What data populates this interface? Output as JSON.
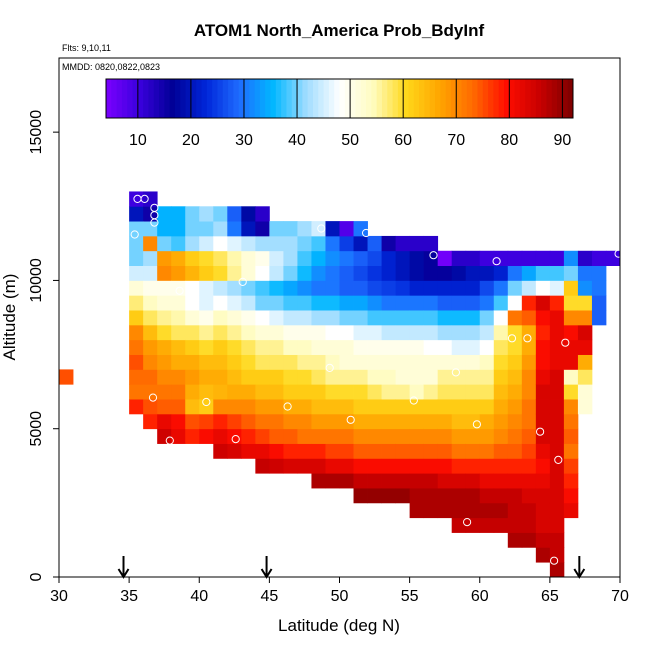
{
  "chart_data": {
    "type": "heatmap",
    "title": "ATOM1 North_America Prob_BdyInf",
    "subtitle_lines": [
      "Flts: 9,10,11",
      "MMDD: 0820,0822,0823"
    ],
    "xlabel": "Latitude (deg N)",
    "ylabel": "Altitude (m)",
    "xlim": [
      30,
      70
    ],
    "ylim": [
      0,
      17500
    ],
    "x_ticks": [
      30,
      35,
      40,
      45,
      50,
      55,
      60,
      65,
      70
    ],
    "y_ticks": [
      0,
      5000,
      10000,
      15000
    ],
    "grid": false,
    "colorbar": {
      "range": [
        4,
        92
      ],
      "ticks": [
        10,
        20,
        30,
        40,
        50,
        60,
        70,
        80,
        90
      ],
      "colors": [
        "#7b00ff",
        "#3a00dd",
        "#000096",
        "#0026d9",
        "#1f6cff",
        "#00b7ff",
        "#9fdcff",
        "#ffffff",
        "#fffcc0",
        "#ffd81a",
        "#ffa500",
        "#ff6a00",
        "#ff0d00",
        "#c80000",
        "#7c0000"
      ]
    },
    "cell_size": {
      "dlat": 1,
      "dalt": 500
    },
    "columns": [
      {
        "lat": 30.5,
        "alt_min": 6750,
        "alt_max": 7250,
        "values": [
          75
        ]
      },
      {
        "lat": 35.5,
        "alt_min": 5750,
        "alt_max": 12750,
        "values": [
          78,
          72,
          73,
          75,
          72,
          70,
          62,
          57,
          52,
          45,
          40,
          40,
          40,
          20,
          10
        ]
      },
      {
        "lat": 36.5,
        "alt_min": 5250,
        "alt_max": 12750,
        "values": [
          78,
          75,
          72,
          73,
          70,
          68,
          64,
          58,
          54,
          50,
          45,
          42,
          70,
          40,
          15,
          12
        ]
      },
      {
        "lat": 37.5,
        "alt_min": 4750,
        "alt_max": 12250,
        "values": [
          85,
          82,
          74,
          72,
          70,
          68,
          66,
          60,
          56,
          52,
          50,
          70,
          68,
          40,
          35,
          35
        ]
      },
      {
        "lat": 38.5,
        "alt_min": 4750,
        "alt_max": 12250,
        "values": [
          82,
          80,
          74,
          72,
          70,
          66,
          64,
          58,
          55,
          52,
          50,
          68,
          66,
          38,
          35,
          35
        ]
      },
      {
        "lat": 39.5,
        "alt_min": 4750,
        "alt_max": 12250,
        "values": [
          78,
          75,
          64,
          66,
          68,
          66,
          62,
          58,
          52,
          48,
          48,
          65,
          62,
          42,
          40,
          40
        ]
      },
      {
        "lat": 40.5,
        "alt_min": 4750,
        "alt_max": 12250,
        "values": [
          80,
          76,
          62,
          64,
          66,
          64,
          60,
          56,
          50,
          46,
          46,
          62,
          60,
          45,
          40,
          42
        ]
      },
      {
        "lat": 41.5,
        "alt_min": 4250,
        "alt_max": 12250,
        "values": [
          85,
          82,
          78,
          70,
          65,
          66,
          64,
          62,
          58,
          54,
          48,
          44,
          60,
          58,
          48,
          42,
          40
        ]
      },
      {
        "lat": 42.5,
        "alt_min": 4250,
        "alt_max": 12250,
        "values": [
          84,
          80,
          76,
          70,
          66,
          64,
          62,
          60,
          56,
          52,
          46,
          42,
          56,
          55,
          46,
          30,
          28
        ]
      },
      {
        "lat": 43.5,
        "alt_min": 4250,
        "alt_max": 12250,
        "values": [
          82,
          78,
          74,
          70,
          66,
          62,
          60,
          58,
          54,
          50,
          44,
          40,
          52,
          52,
          44,
          20,
          18
        ]
      },
      {
        "lat": 44.5,
        "alt_min": 3750,
        "alt_max": 12250,
        "values": [
          86,
          82,
          76,
          72,
          68,
          64,
          62,
          58,
          56,
          52,
          48,
          40,
          38,
          48,
          50,
          42,
          15,
          12
        ]
      },
      {
        "lat": 45.5,
        "alt_min": 3750,
        "alt_max": 11750,
        "values": [
          85,
          80,
          74,
          72,
          68,
          64,
          62,
          58,
          56,
          52,
          46,
          40,
          36,
          44,
          45,
          42,
          40
        ]
      },
      {
        "lat": 46.5,
        "alt_min": 3750,
        "alt_max": 11750,
        "values": [
          84,
          78,
          74,
          70,
          66,
          62,
          60,
          58,
          54,
          50,
          44,
          38,
          34,
          40,
          42,
          42,
          40
        ]
      },
      {
        "lat": 47.5,
        "alt_min": 3750,
        "alt_max": 11750,
        "values": [
          84,
          78,
          72,
          70,
          66,
          62,
          60,
          56,
          54,
          50,
          44,
          38,
          32,
          36,
          38,
          40,
          42
        ]
      },
      {
        "lat": 48.5,
        "alt_min": 3250,
        "alt_max": 11750,
        "values": [
          88,
          84,
          78,
          72,
          68,
          64,
          62,
          58,
          56,
          52,
          50,
          42,
          36,
          30,
          32,
          35,
          38,
          45
        ]
      },
      {
        "lat": 49.5,
        "alt_min": 3250,
        "alt_max": 11750,
        "values": [
          88,
          82,
          76,
          72,
          68,
          64,
          60,
          56,
          54,
          52,
          48,
          42,
          36,
          30,
          30,
          32,
          30,
          20
        ]
      },
      {
        "lat": 50.5,
        "alt_min": 3250,
        "alt_max": 11750,
        "values": [
          88,
          82,
          76,
          72,
          68,
          64,
          60,
          56,
          52,
          52,
          48,
          40,
          34,
          28,
          28,
          30,
          25,
          8
        ]
      },
      {
        "lat": 51.5,
        "alt_min": 2750,
        "alt_max": 11750,
        "values": [
          90,
          86,
          80,
          74,
          70,
          66,
          62,
          60,
          56,
          52,
          50,
          46,
          40,
          34,
          28,
          26,
          28,
          20,
          30
        ]
      },
      {
        "lat": 52.5,
        "alt_min": 2750,
        "alt_max": 11250,
        "values": [
          90,
          86,
          80,
          74,
          70,
          66,
          62,
          58,
          54,
          52,
          50,
          46,
          38,
          32,
          26,
          24,
          26,
          28
        ]
      },
      {
        "lat": 53.5,
        "alt_min": 2750,
        "alt_max": 11250,
        "values": [
          90,
          86,
          80,
          74,
          70,
          66,
          62,
          56,
          54,
          52,
          50,
          44,
          38,
          30,
          25,
          22,
          22,
          15
        ]
      },
      {
        "lat": 54.5,
        "alt_min": 2750,
        "alt_max": 11250,
        "values": [
          90,
          86,
          80,
          74,
          70,
          66,
          62,
          56,
          52,
          52,
          50,
          44,
          38,
          30,
          24,
          20,
          20,
          12
        ]
      },
      {
        "lat": 55.5,
        "alt_min": 2250,
        "alt_max": 11250,
        "values": [
          88,
          88,
          86,
          80,
          74,
          70,
          66,
          62,
          54,
          52,
          52,
          50,
          44,
          38,
          30,
          22,
          18,
          18,
          12
        ]
      },
      {
        "lat": 56.5,
        "alt_min": 2250,
        "alt_max": 11250,
        "values": [
          88,
          88,
          86,
          80,
          74,
          70,
          66,
          62,
          56,
          52,
          52,
          48,
          44,
          38,
          30,
          22,
          16,
          16,
          12
        ]
      },
      {
        "lat": 57.5,
        "alt_min": 2250,
        "alt_max": 10750,
        "values": [
          88,
          88,
          84,
          80,
          74,
          70,
          66,
          62,
          58,
          56,
          52,
          48,
          42,
          36,
          28,
          22,
          16,
          5
        ]
      },
      {
        "lat": 58.5,
        "alt_min": 1750,
        "alt_max": 10750,
        "values": [
          86,
          88,
          88,
          84,
          78,
          72,
          68,
          64,
          62,
          58,
          56,
          52,
          46,
          42,
          36,
          28,
          22,
          18,
          12
        ]
      },
      {
        "lat": 59.5,
        "alt_min": 1750,
        "alt_max": 10750,
        "values": [
          86,
          88,
          88,
          84,
          78,
          72,
          68,
          64,
          62,
          58,
          56,
          52,
          46,
          42,
          36,
          28,
          22,
          20,
          12
        ]
      },
      {
        "lat": 60.5,
        "alt_min": 1750,
        "alt_max": 10750,
        "values": [
          86,
          88,
          86,
          82,
          78,
          72,
          68,
          66,
          62,
          58,
          56,
          54,
          48,
          44,
          40,
          30,
          26,
          20,
          10
        ]
      },
      {
        "lat": 61.5,
        "alt_min": 1750,
        "alt_max": 10750,
        "values": [
          86,
          88,
          86,
          82,
          78,
          74,
          70,
          68,
          66,
          64,
          62,
          60,
          58,
          55,
          48,
          38,
          30,
          22,
          10
        ]
      },
      {
        "lat": 62.5,
        "alt_min": 1250,
        "alt_max": 10750,
        "values": [
          88,
          86,
          86,
          86,
          82,
          78,
          74,
          72,
          70,
          68,
          66,
          64,
          62,
          60,
          60,
          72,
          48,
          40,
          30,
          10
        ]
      },
      {
        "lat": 63.5,
        "alt_min": 1250,
        "alt_max": 10750,
        "values": [
          88,
          86,
          86,
          84,
          82,
          78,
          76,
          74,
          72,
          72,
          70,
          70,
          68,
          66,
          66,
          74,
          78,
          44,
          34,
          10
        ]
      },
      {
        "lat": 64.5,
        "alt_min": 750,
        "alt_max": 10750,
        "values": [
          88,
          86,
          84,
          84,
          84,
          82,
          80,
          82,
          84,
          84,
          84,
          84,
          82,
          80,
          80,
          78,
          80,
          84,
          48,
          38,
          10
        ]
      },
      {
        "lat": 65.5,
        "alt_min": 250,
        "alt_max": 10750,
        "values": [
          88,
          86,
          86,
          84,
          84,
          84,
          84,
          84,
          84,
          84,
          84,
          84,
          84,
          84,
          82,
          82,
          82,
          82,
          78,
          46,
          38,
          10
        ]
      },
      {
        "lat": 66.5,
        "alt_min": 2250,
        "alt_max": 10750,
        "values": [
          82,
          80,
          78,
          76,
          72,
          74,
          72,
          70,
          60,
          54,
          82,
          82,
          80,
          70,
          60,
          62,
          40,
          32
        ]
      },
      {
        "lat": 67.5,
        "alt_min": 5750,
        "alt_max": 10750,
        "values": [
          52,
          52,
          58,
          66,
          82,
          84,
          70,
          60,
          32,
          30,
          12
        ]
      },
      {
        "lat": 68.5,
        "alt_min": 8750,
        "alt_max": 10750,
        "values": [
          28,
          28,
          30,
          30,
          10
        ]
      },
      {
        "lat": 69.5,
        "alt_min": 10750,
        "alt_max": 10750,
        "values": [
          10
        ]
      }
    ],
    "points": [
      {
        "lat": 34.7,
        "alt": 7150
      },
      {
        "lat": 36.7,
        "alt": 6050
      },
      {
        "lat": 37.9,
        "alt": 4600
      },
      {
        "lat": 42.6,
        "alt": 4650
      },
      {
        "lat": 40.5,
        "alt": 5900
      },
      {
        "lat": 46.3,
        "alt": 5750
      },
      {
        "lat": 49.3,
        "alt": 7050
      },
      {
        "lat": 50.8,
        "alt": 5300
      },
      {
        "lat": 55.3,
        "alt": 5950
      },
      {
        "lat": 58.3,
        "alt": 6900
      },
      {
        "lat": 59.8,
        "alt": 5150
      },
      {
        "lat": 64.3,
        "alt": 4900
      },
      {
        "lat": 65.6,
        "alt": 3950
      },
      {
        "lat": 65.3,
        "alt": 550
      },
      {
        "lat": 59.1,
        "alt": 1850
      },
      {
        "lat": 62.3,
        "alt": 8050
      },
      {
        "lat": 63.4,
        "alt": 8050
      },
      {
        "lat": 66.1,
        "alt": 7900
      },
      {
        "lat": 36.1,
        "alt": 12750
      },
      {
        "lat": 35.6,
        "alt": 12750
      },
      {
        "lat": 36.8,
        "alt": 12450
      },
      {
        "lat": 36.8,
        "alt": 12200
      },
      {
        "lat": 36.8,
        "alt": 11950
      },
      {
        "lat": 35.4,
        "alt": 11550
      },
      {
        "lat": 38.6,
        "alt": 9650
      },
      {
        "lat": 43.1,
        "alt": 9950
      },
      {
        "lat": 48.7,
        "alt": 11750
      },
      {
        "lat": 51.9,
        "alt": 11600
      },
      {
        "lat": 56.7,
        "alt": 10850
      },
      {
        "lat": 61.2,
        "alt": 10650
      },
      {
        "lat": 69.9,
        "alt": 10900
      }
    ],
    "arrows_at_lat": [
      34.6,
      44.8,
      67.1
    ]
  }
}
